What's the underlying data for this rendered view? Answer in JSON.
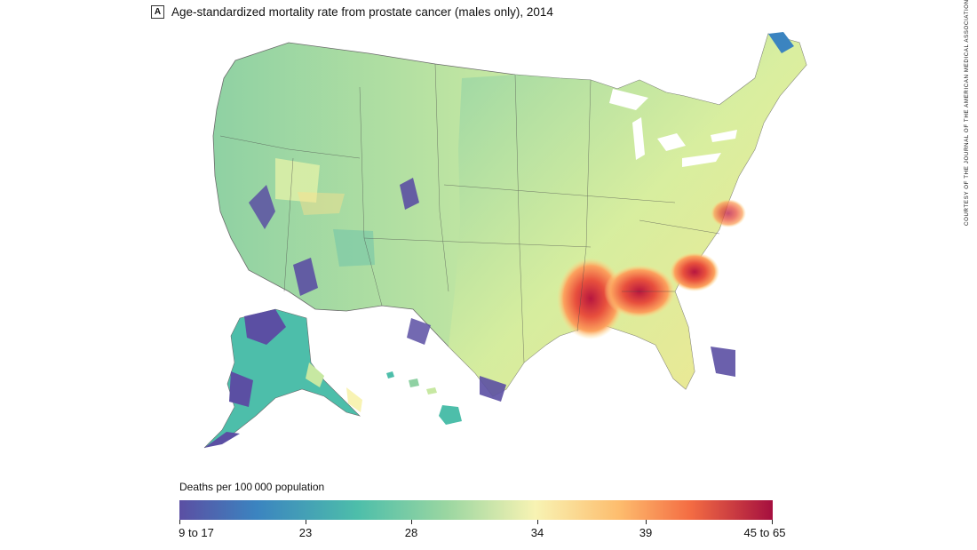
{
  "figure": {
    "panel_label": "A",
    "title": "Age-standardized mortality rate from prostate cancer (males only), 2014",
    "credit": "COURTESY OF THE JOURNAL OF THE AMERICAN MEDICAL ASSOCIATION"
  },
  "legend": {
    "title": "Deaths per 100 000 population",
    "tick_labels": [
      "9 to 17",
      "23",
      "28",
      "34",
      "39",
      "45 to 65"
    ],
    "color_stops": [
      "#5b4fa3",
      "#3b84c0",
      "#4dbeaa",
      "#9ad6a1",
      "#f8f3b3",
      "#fdbd6e",
      "#f46d43",
      "#a50f3f"
    ]
  },
  "map": {
    "region": "United States (counties)",
    "icons": [
      "us-map-icon",
      "alaska-icon",
      "hawaii-icon"
    ]
  }
}
